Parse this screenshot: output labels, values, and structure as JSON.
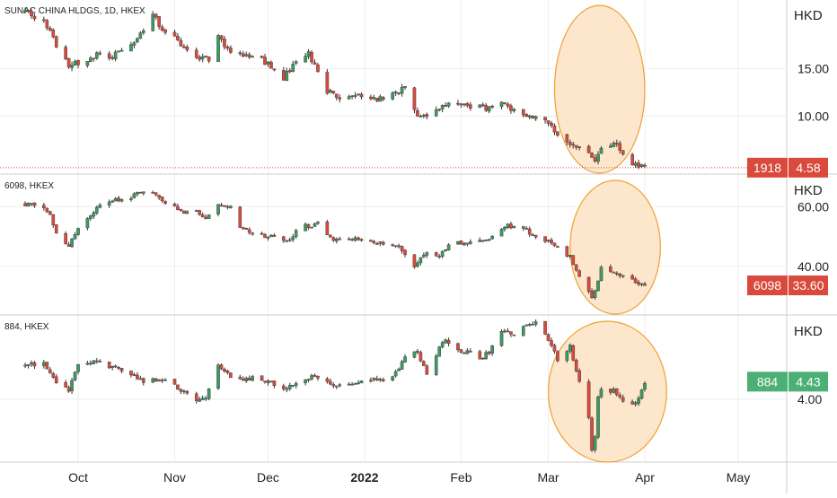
{
  "time_axis": {
    "labels": [
      {
        "text": "Oct",
        "bold": false,
        "date": "2021-10-01"
      },
      {
        "text": "Nov",
        "bold": false,
        "date": "2021-11-01"
      },
      {
        "text": "Dec",
        "bold": false,
        "date": "2021-12-01"
      },
      {
        "text": "2022",
        "bold": true,
        "date": "2022-01-01"
      },
      {
        "text": "Feb",
        "bold": false,
        "date": "2022-02-01"
      },
      {
        "text": "Mar",
        "bold": false,
        "date": "2022-03-01"
      },
      {
        "text": "Apr",
        "bold": false,
        "date": "2022-04-01"
      },
      {
        "text": "May",
        "bold": false,
        "date": "2022-05-01"
      }
    ]
  },
  "colors": {
    "up": "#26a69a",
    "up_candle": "#3d9a62",
    "down": "#d94a3c",
    "highlight_fill": "#fbe3c3",
    "highlight_stroke": "#f0a030",
    "grid": "#eeeeee",
    "divider": "#cccccc",
    "text": "#222222"
  },
  "chart_data": [
    {
      "type": "candlestick",
      "title": "SUNAC CHINA HLDGS, 1D, HKEX",
      "currency": "HKD",
      "y_ticks": [
        "15.00",
        "10.00"
      ],
      "y_tick_values": [
        15,
        10
      ],
      "ylim": [
        4.0,
        22.2
      ],
      "last_price": "4.58",
      "last_value": 4.58,
      "symbol_badge": "1918",
      "badge_color": "#d94a3c",
      "highlight": {
        "start": "2022-03-03",
        "end": "2022-04-01",
        "note": "circled region"
      },
      "anchors": [
        [
          "2021-09-14",
          21.0
        ],
        [
          "2021-09-20",
          20.0
        ],
        [
          "2021-09-24",
          17.5
        ],
        [
          "2021-09-28",
          15.4
        ],
        [
          "2021-10-04",
          15.8
        ],
        [
          "2021-10-08",
          16.8
        ],
        [
          "2021-10-12",
          16.2
        ],
        [
          "2021-10-18",
          17.5
        ],
        [
          "2021-10-22",
          19.0
        ],
        [
          "2021-10-25",
          20.6
        ],
        [
          "2021-10-27",
          19.6
        ],
        [
          "2021-11-03",
          17.5
        ],
        [
          "2021-11-08",
          16.0
        ],
        [
          "2021-11-12",
          16.0
        ],
        [
          "2021-11-15",
          18.2
        ],
        [
          "2021-11-19",
          16.5
        ],
        [
          "2021-11-26",
          16.4
        ],
        [
          "2021-12-01",
          15.5
        ],
        [
          "2021-12-06",
          14.0
        ],
        [
          "2021-12-10",
          15.8
        ],
        [
          "2021-12-14",
          16.5
        ],
        [
          "2021-12-20",
          12.5
        ],
        [
          "2021-12-24",
          12.1
        ],
        [
          "2021-12-31",
          12.3
        ],
        [
          "2022-01-07",
          11.7
        ],
        [
          "2022-01-10",
          12.7
        ],
        [
          "2022-01-14",
          12.8
        ],
        [
          "2022-01-18",
          10.0
        ],
        [
          "2022-01-24",
          10.4
        ],
        [
          "2022-01-28",
          11.6
        ],
        [
          "2022-02-04",
          10.9
        ],
        [
          "2022-02-10",
          10.8
        ],
        [
          "2022-02-15",
          11.6
        ],
        [
          "2022-02-18",
          10.5
        ],
        [
          "2022-02-24",
          10.0
        ],
        [
          "2022-03-01",
          9.2
        ],
        [
          "2022-03-04",
          7.8
        ],
        [
          "2022-03-09",
          7.1
        ],
        [
          "2022-03-14",
          6.0
        ],
        [
          "2022-03-16",
          5.0
        ],
        [
          "2022-03-18",
          6.6
        ],
        [
          "2022-03-22",
          7.2
        ],
        [
          "2022-03-25",
          6.0
        ],
        [
          "2022-03-29",
          4.9
        ],
        [
          "2022-04-01",
          4.58
        ]
      ]
    },
    {
      "type": "candlestick",
      "title": "6098, HKEX",
      "currency": "HKD",
      "y_ticks": [
        "60.00",
        "40.00"
      ],
      "y_tick_values": [
        60,
        40
      ],
      "ylim": [
        24.0,
        70.6
      ],
      "last_price": "33.60",
      "last_value": 33.6,
      "symbol_badge": "6098",
      "badge_color": "#d94a3c",
      "highlight": {
        "start": "2022-03-08",
        "end": "2022-04-06",
        "note": "circled region"
      },
      "anchors": [
        [
          "2021-09-14",
          61.0
        ],
        [
          "2021-09-17",
          61.0
        ],
        [
          "2021-09-22",
          58.0
        ],
        [
          "2021-09-24",
          51.0
        ],
        [
          "2021-09-28",
          47.0
        ],
        [
          "2021-10-01",
          53.0
        ],
        [
          "2021-10-07",
          59.5
        ],
        [
          "2021-10-12",
          62.0
        ],
        [
          "2021-10-18",
          63.0
        ],
        [
          "2021-10-21",
          65.0
        ],
        [
          "2021-10-25",
          65.0
        ],
        [
          "2021-10-28",
          61.5
        ],
        [
          "2021-11-03",
          58.5
        ],
        [
          "2021-11-08",
          58.0
        ],
        [
          "2021-11-11",
          56.5
        ],
        [
          "2021-11-15",
          60.5
        ],
        [
          "2021-11-19",
          60.0
        ],
        [
          "2021-11-22",
          53.0
        ],
        [
          "2021-11-30",
          50.0
        ],
        [
          "2021-12-07",
          49.0
        ],
        [
          "2021-12-13",
          53.5
        ],
        [
          "2021-12-17",
          54.0
        ],
        [
          "2021-12-21",
          49.5
        ],
        [
          "2022-01-03",
          48.5
        ],
        [
          "2022-01-07",
          47.5
        ],
        [
          "2022-01-12",
          46.5
        ],
        [
          "2022-01-17",
          40.5
        ],
        [
          "2022-01-21",
          44.5
        ],
        [
          "2022-01-25",
          44.0
        ],
        [
          "2022-01-28",
          47.5
        ],
        [
          "2022-02-04",
          48.0
        ],
        [
          "2022-02-10",
          49.0
        ],
        [
          "2022-02-15",
          53.5
        ],
        [
          "2022-02-21",
          52.5
        ],
        [
          "2022-02-24",
          51.0
        ],
        [
          "2022-03-01",
          48.0
        ],
        [
          "2022-03-04",
          46.0
        ],
        [
          "2022-03-08",
          43.0
        ],
        [
          "2022-03-11",
          37.0
        ],
        [
          "2022-03-15",
          29.0
        ],
        [
          "2022-03-17",
          34.5
        ],
        [
          "2022-03-18",
          40.0
        ],
        [
          "2022-03-22",
          38.5
        ],
        [
          "2022-03-25",
          37.0
        ],
        [
          "2022-03-29",
          35.0
        ],
        [
          "2022-04-01",
          33.6
        ]
      ]
    },
    {
      "type": "candlestick",
      "title": "884, HKEX",
      "currency": "HKD",
      "y_ticks": [
        "4.00"
      ],
      "y_tick_values": [
        4.0
      ],
      "ylim": [
        2.45,
        6.05
      ],
      "last_price": "4.43",
      "last_value": 4.43,
      "symbol_badge": "884",
      "badge_color": "#4caf73",
      "highlight": {
        "start": "2022-03-01",
        "end": "2022-04-08",
        "note": "circled region"
      },
      "anchors": [
        [
          "2021-09-14",
          4.85
        ],
        [
          "2021-09-20",
          4.88
        ],
        [
          "2021-09-24",
          4.45
        ],
        [
          "2021-09-28",
          4.2
        ],
        [
          "2021-10-01",
          4.85
        ],
        [
          "2021-10-06",
          4.95
        ],
        [
          "2021-10-12",
          4.8
        ],
        [
          "2021-10-18",
          4.65
        ],
        [
          "2021-10-22",
          4.4
        ],
        [
          "2021-10-27",
          4.5
        ],
        [
          "2021-11-03",
          4.25
        ],
        [
          "2021-11-08",
          4.0
        ],
        [
          "2021-11-11",
          4.05
        ],
        [
          "2021-11-15",
          4.85
        ],
        [
          "2021-11-19",
          4.55
        ],
        [
          "2021-11-26",
          4.5
        ],
        [
          "2021-12-01",
          4.45
        ],
        [
          "2021-12-07",
          4.25
        ],
        [
          "2021-12-13",
          4.5
        ],
        [
          "2021-12-17",
          4.55
        ],
        [
          "2021-12-23",
          4.3
        ],
        [
          "2022-01-03",
          4.45
        ],
        [
          "2022-01-10",
          4.5
        ],
        [
          "2022-01-14",
          5.0
        ],
        [
          "2022-01-18",
          5.2
        ],
        [
          "2022-01-21",
          4.55
        ],
        [
          "2022-01-26",
          5.45
        ],
        [
          "2022-01-31",
          5.25
        ],
        [
          "2022-02-07",
          5.0
        ],
        [
          "2022-02-10",
          5.15
        ],
        [
          "2022-02-14",
          5.7
        ],
        [
          "2022-02-18",
          5.55
        ],
        [
          "2022-02-22",
          5.8
        ],
        [
          "2022-02-25",
          5.9
        ],
        [
          "2022-03-01",
          5.45
        ],
        [
          "2022-03-04",
          5.0
        ],
        [
          "2022-03-08",
          5.3
        ],
        [
          "2022-03-11",
          4.4
        ],
        [
          "2022-03-14",
          3.6
        ],
        [
          "2022-03-15",
          2.7
        ],
        [
          "2022-03-16",
          3.1
        ],
        [
          "2022-03-17",
          4.0
        ],
        [
          "2022-03-18",
          4.3
        ],
        [
          "2022-03-22",
          4.2
        ],
        [
          "2022-03-25",
          3.95
        ],
        [
          "2022-03-29",
          3.9
        ],
        [
          "2022-04-01",
          4.43
        ]
      ]
    }
  ]
}
